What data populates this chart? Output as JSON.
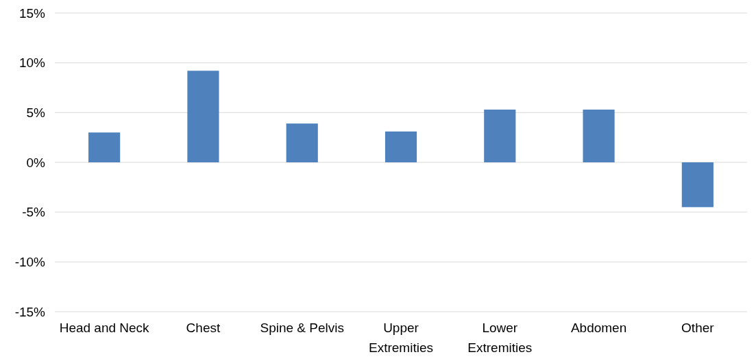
{
  "chart_data": {
    "type": "bar",
    "categories": [
      "Head and Neck",
      "Chest",
      "Spine & Pelvis",
      "Upper Extremities",
      "Lower Extremities",
      "Abdomen",
      "Other"
    ],
    "values": [
      3.0,
      9.2,
      3.9,
      3.1,
      5.3,
      5.3,
      -4.5
    ],
    "color": "#4f81bd",
    "ylim": [
      -15,
      15
    ],
    "yticks": [
      {
        "value": -15,
        "label": "-15%"
      },
      {
        "value": -10,
        "label": "-10%"
      },
      {
        "value": -5,
        "label": "-5%"
      },
      {
        "value": 0,
        "label": "0%"
      },
      {
        "value": 5,
        "label": "5%"
      },
      {
        "value": 10,
        "label": "10%"
      },
      {
        "value": 15,
        "label": "15%"
      }
    ],
    "grid": "y"
  }
}
